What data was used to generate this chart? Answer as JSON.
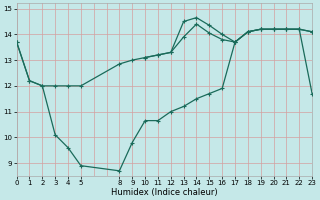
{
  "xlabel": "Humidex (Indice chaleur)",
  "background_color": "#c5e8e8",
  "grid_color": "#d4a0a0",
  "line_color": "#1a6b5a",
  "xlim": [
    0,
    23
  ],
  "ylim": [
    8.5,
    15.2
  ],
  "yticks": [
    9,
    10,
    11,
    12,
    13,
    14,
    15
  ],
  "xtick_positions": [
    0,
    1,
    2,
    3,
    4,
    5,
    8,
    9,
    10,
    11,
    12,
    13,
    14,
    15,
    16,
    17,
    18,
    19,
    20,
    21,
    22,
    23
  ],
  "xtick_labels": [
    "0",
    "1",
    "2",
    "3",
    "4",
    "5",
    "8",
    "9",
    "10",
    "11",
    "12",
    "13",
    "14",
    "15",
    "16",
    "17",
    "18",
    "19",
    "20",
    "21",
    "22",
    "23"
  ],
  "line1_x": [
    0,
    1,
    2,
    3,
    4,
    5,
    8,
    9,
    10,
    11,
    12,
    13,
    14,
    15,
    16,
    17,
    18,
    19,
    20,
    21,
    22,
    23
  ],
  "line1_y": [
    13.7,
    12.2,
    12.0,
    12.0,
    12.0,
    12.0,
    12.85,
    13.0,
    13.1,
    13.2,
    13.3,
    13.9,
    14.4,
    14.05,
    13.8,
    13.7,
    14.1,
    14.2,
    14.2,
    14.2,
    14.2,
    14.1
  ],
  "line2_x": [
    0,
    1,
    2,
    3,
    4,
    5,
    8,
    9,
    10,
    11,
    12,
    13,
    14,
    15,
    16,
    17,
    18,
    19,
    20,
    21,
    22,
    23
  ],
  "line2_y": [
    13.7,
    12.2,
    12.0,
    10.1,
    9.6,
    8.9,
    8.7,
    9.8,
    10.65,
    10.65,
    11.0,
    11.2,
    11.5,
    11.7,
    11.9,
    13.7,
    14.1,
    14.2,
    14.2,
    14.2,
    14.2,
    11.7
  ],
  "line3_x": [
    10,
    11,
    12,
    13,
    14,
    15,
    16,
    17,
    18,
    19,
    20,
    21,
    22,
    23
  ],
  "line3_y": [
    13.1,
    13.2,
    13.3,
    14.5,
    14.65,
    14.35,
    14.0,
    13.7,
    14.1,
    14.2,
    14.2,
    14.2,
    14.2,
    14.1
  ]
}
